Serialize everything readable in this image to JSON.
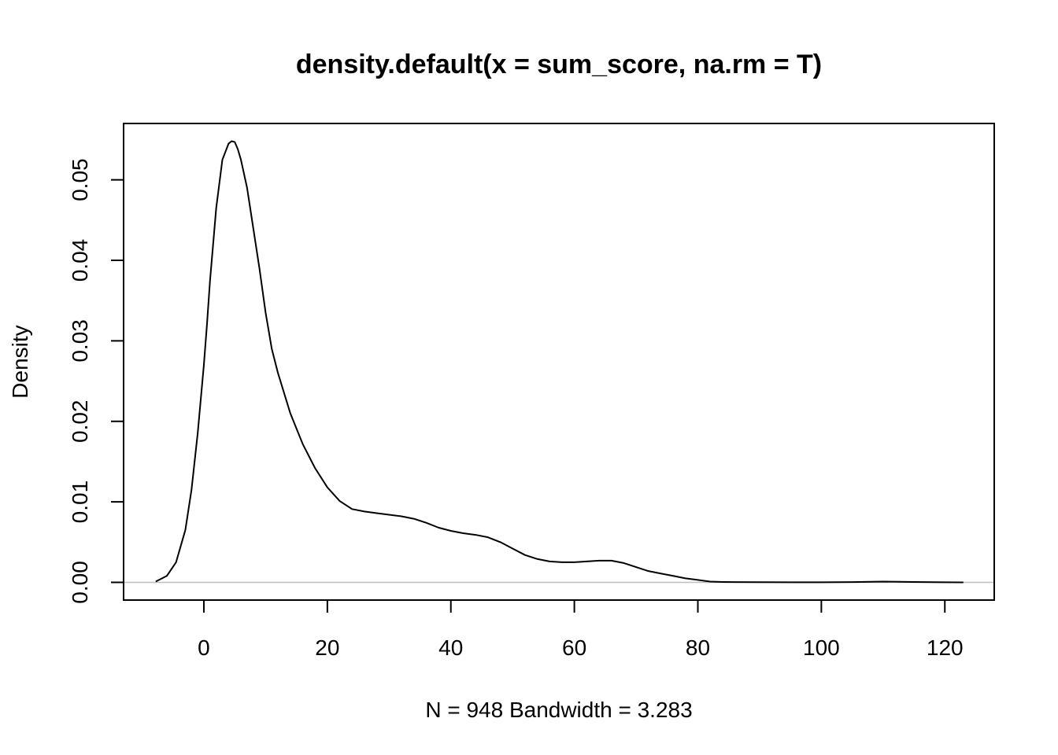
{
  "chart_data": {
    "type": "line",
    "title": "density.default(x = sum_score, na.rm = T)",
    "xlabel": "N = 948   Bandwidth = 3.283",
    "ylabel": "Density",
    "xlim": [
      -13,
      128
    ],
    "ylim": [
      -0.0022,
      0.057
    ],
    "x_ticks": [
      0,
      20,
      40,
      60,
      80,
      100,
      120
    ],
    "x_tick_labels": [
      "0",
      "20",
      "40",
      "60",
      "80",
      "100",
      "120"
    ],
    "y_ticks": [
      0.0,
      0.01,
      0.02,
      0.03,
      0.04,
      0.05
    ],
    "y_tick_labels": [
      "0.00",
      "0.01",
      "0.02",
      "0.03",
      "0.04",
      "0.05"
    ],
    "baseline": 0,
    "baseline_color": "#bebebe",
    "line_color": "#000000",
    "grid": false,
    "series": [
      {
        "x": [
          -7.8,
          -6,
          -4.5,
          -3,
          -2,
          -1,
          0,
          0.5,
          1,
          2,
          3,
          4,
          4.5,
          5,
          5.5,
          6,
          7,
          8,
          9,
          10,
          11,
          12,
          14,
          16,
          18,
          20,
          22,
          24,
          26,
          28,
          30,
          32,
          34,
          36,
          38,
          40,
          42,
          44,
          46,
          48,
          50,
          52,
          54,
          56,
          58,
          60,
          62,
          64,
          66,
          68,
          70,
          72,
          74,
          76,
          78,
          80,
          82,
          84,
          86,
          90,
          95,
          100,
          105,
          110,
          115,
          120,
          123
        ],
        "y": [
          0.0001,
          0.0008,
          0.0025,
          0.0065,
          0.0115,
          0.0185,
          0.027,
          0.032,
          0.0375,
          0.0465,
          0.0525,
          0.0545,
          0.0548,
          0.0547,
          0.0538,
          0.0525,
          0.049,
          0.044,
          0.039,
          0.0335,
          0.029,
          0.026,
          0.021,
          0.0172,
          0.0142,
          0.0118,
          0.0101,
          0.0091,
          0.0088,
          0.0086,
          0.0084,
          0.0082,
          0.0079,
          0.0074,
          0.0068,
          0.0064,
          0.0061,
          0.0059,
          0.0056,
          0.005,
          0.0042,
          0.0034,
          0.0029,
          0.0026,
          0.0025,
          0.0025,
          0.0026,
          0.0027,
          0.0027,
          0.0024,
          0.0019,
          0.0014,
          0.0011,
          0.0008,
          0.0005,
          0.0003,
          0.0001,
          5e-05,
          3e-05,
          2e-05,
          1e-05,
          1e-05,
          4e-05,
          0.0001,
          5e-05,
          1e-05,
          0.0
        ]
      }
    ]
  }
}
